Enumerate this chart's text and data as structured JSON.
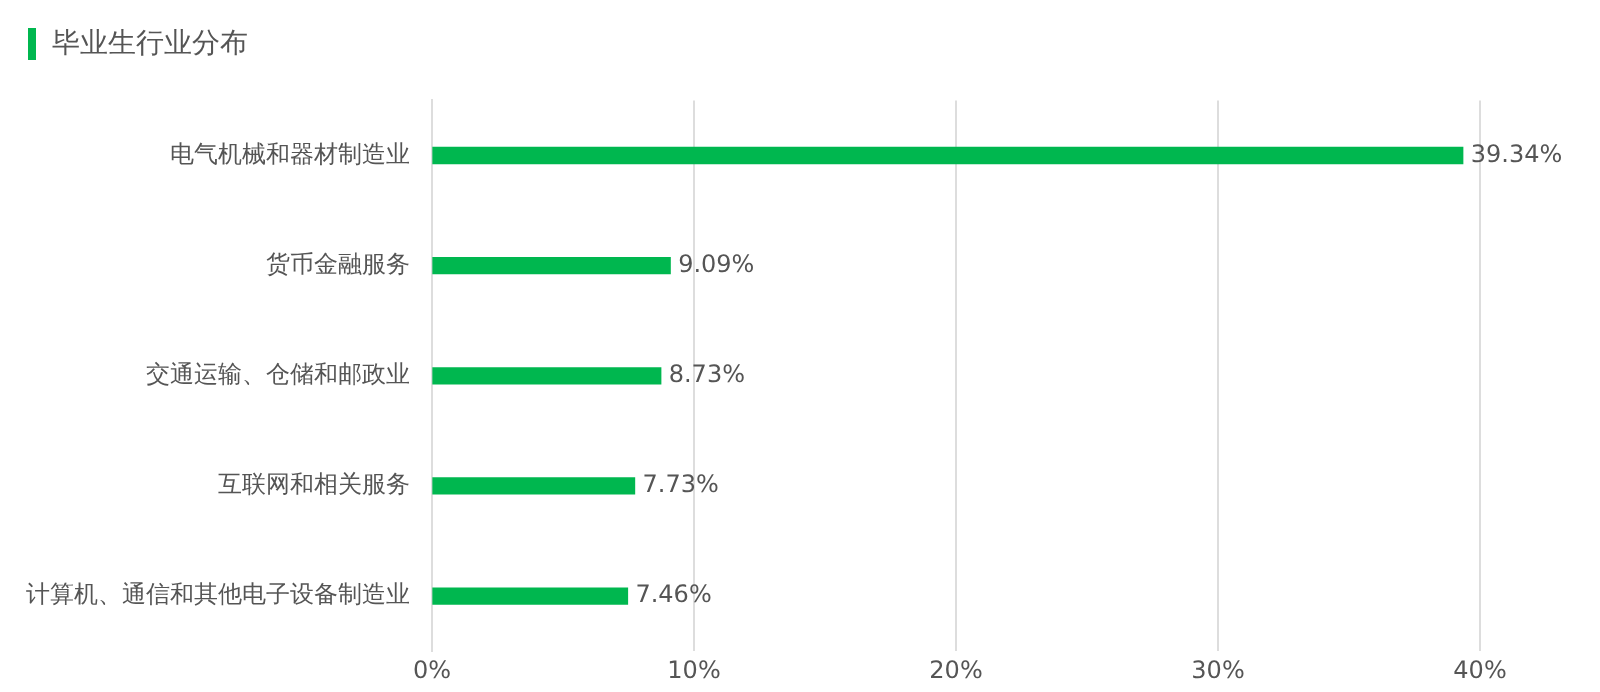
{
  "chart_data": {
    "type": "bar",
    "orientation": "horizontal",
    "title": "毕业生行业分布",
    "categories": [
      "电气机械和器材制造业",
      "货币金融服务",
      "交通运输、仓储和邮政业",
      "互联网和相关服务",
      "计算机、通信和其他电子设备制造业"
    ],
    "values": [
      39.34,
      9.09,
      8.73,
      7.73,
      7.46
    ],
    "value_labels": [
      "39.34%",
      "9.09%",
      "8.73%",
      "7.73%",
      "7.46%"
    ],
    "color": "#00b74f",
    "xlim": [
      0,
      40
    ],
    "xticks": [
      {
        "value": 0,
        "label": "0%"
      },
      {
        "value": 10,
        "label": "10%"
      },
      {
        "value": 20,
        "label": "20%"
      },
      {
        "value": 30,
        "label": "30%"
      },
      {
        "value": 40,
        "label": "40%"
      }
    ],
    "grid": "x",
    "legend": false
  }
}
